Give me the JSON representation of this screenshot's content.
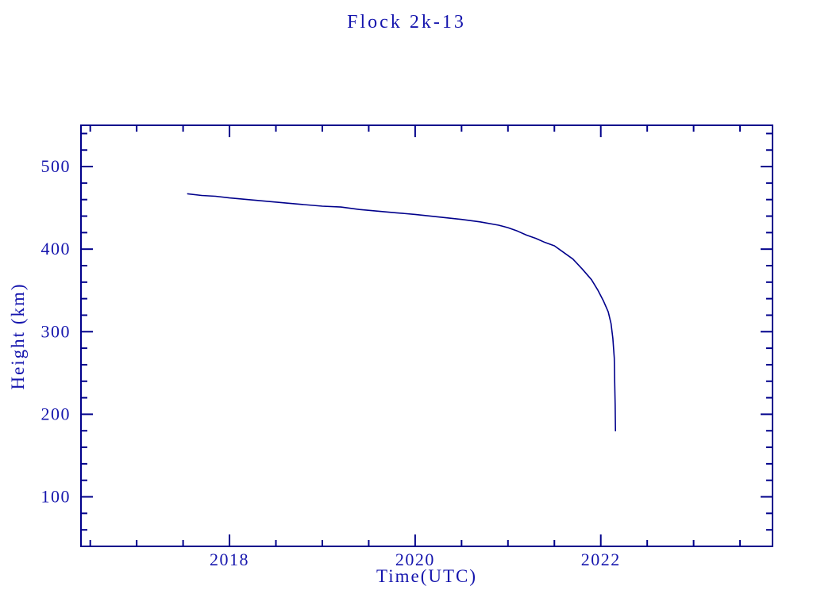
{
  "page": {
    "background": "#ffffff"
  },
  "chart_data": {
    "type": "line",
    "title": "Flock 2k-13",
    "xlabel": "Time(UTC)",
    "ylabel": "Height (km)",
    "xlim": [
      2016.4,
      2023.85
    ],
    "ylim": [
      40,
      550
    ],
    "x_major_ticks": [
      2018,
      2020,
      2022
    ],
    "x_major_tick_labels": [
      "2018",
      "2020",
      "2022"
    ],
    "x_minor_step": 0.5,
    "y_major_ticks": [
      100,
      200,
      300,
      400,
      500
    ],
    "y_major_tick_labels": [
      "100",
      "200",
      "300",
      "400",
      "500"
    ],
    "y_minor_step": 20,
    "grid": false,
    "legend_position": "none",
    "colors": {
      "text": "#1515AD",
      "axis": "#00008B",
      "line": "#00008B"
    },
    "series": [
      {
        "name": "Flock 2k-13 height",
        "points": [
          [
            2017.55,
            467
          ],
          [
            2017.7,
            465
          ],
          [
            2017.85,
            464
          ],
          [
            2018.0,
            462
          ],
          [
            2018.2,
            460
          ],
          [
            2018.4,
            458
          ],
          [
            2018.6,
            456
          ],
          [
            2018.8,
            454
          ],
          [
            2019.0,
            452
          ],
          [
            2019.2,
            451
          ],
          [
            2019.4,
            448
          ],
          [
            2019.6,
            446
          ],
          [
            2019.8,
            444
          ],
          [
            2020.0,
            442
          ],
          [
            2020.25,
            439
          ],
          [
            2020.5,
            436
          ],
          [
            2020.7,
            433
          ],
          [
            2020.9,
            429
          ],
          [
            2021.0,
            426
          ],
          [
            2021.1,
            422
          ],
          [
            2021.2,
            417
          ],
          [
            2021.3,
            413
          ],
          [
            2021.4,
            408
          ],
          [
            2021.5,
            404
          ],
          [
            2021.6,
            396
          ],
          [
            2021.7,
            388
          ],
          [
            2021.8,
            376
          ],
          [
            2021.9,
            363
          ],
          [
            2021.97,
            350
          ],
          [
            2022.03,
            337
          ],
          [
            2022.08,
            324
          ],
          [
            2022.11,
            310
          ],
          [
            2022.13,
            292
          ],
          [
            2022.145,
            268
          ],
          [
            2022.15,
            240
          ],
          [
            2022.155,
            212
          ],
          [
            2022.158,
            180
          ]
        ]
      }
    ]
  }
}
